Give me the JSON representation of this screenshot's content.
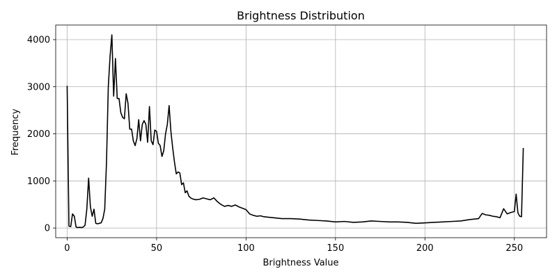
{
  "chart_data": {
    "type": "line",
    "title": "Brightness Distribution",
    "xlabel": "Brightness Value",
    "ylabel": "Frequency",
    "xlim": [
      -6.4,
      268
    ],
    "ylim": [
      -205,
      4310
    ],
    "xticks": [
      0,
      50,
      100,
      150,
      200,
      250
    ],
    "yticks": [
      0,
      1000,
      2000,
      3000,
      4000
    ],
    "grid": true,
    "series": [
      {
        "color": "#000000",
        "x": [
          0,
          1,
          2,
          3,
          4,
          5,
          6,
          7,
          8,
          9,
          10,
          11,
          12,
          13,
          14,
          15,
          16,
          17,
          18,
          19,
          20,
          21,
          22,
          23,
          24,
          25,
          26,
          27,
          28,
          29,
          30,
          31,
          32,
          33,
          34,
          35,
          36,
          37,
          38,
          39,
          40,
          41,
          42,
          43,
          44,
          45,
          46,
          47,
          48,
          49,
          50,
          51,
          52,
          53,
          54,
          55,
          56,
          57,
          58,
          59,
          60,
          61,
          62,
          63,
          64,
          65,
          66,
          67,
          68,
          69,
          70,
          72,
          74,
          76,
          78,
          80,
          82,
          84,
          86,
          88,
          90,
          92,
          94,
          96,
          98,
          100,
          102,
          104,
          106,
          108,
          110,
          115,
          120,
          125,
          130,
          135,
          140,
          145,
          150,
          155,
          160,
          165,
          170,
          175,
          180,
          185,
          190,
          195,
          200,
          205,
          210,
          215,
          220,
          225,
          230,
          232,
          234,
          236,
          238,
          240,
          242,
          244,
          246,
          248,
          250,
          251,
          252,
          253,
          254,
          255
        ],
        "y": [
          3020,
          40,
          30,
          300,
          250,
          20,
          10,
          15,
          10,
          20,
          60,
          400,
          1060,
          450,
          250,
          400,
          100,
          90,
          100,
          110,
          200,
          400,
          1400,
          3000,
          3650,
          4100,
          2800,
          3600,
          2750,
          2750,
          2450,
          2350,
          2320,
          2850,
          2650,
          2100,
          2100,
          1850,
          1750,
          1900,
          2300,
          1850,
          2200,
          2280,
          2200,
          1820,
          2580,
          1850,
          1770,
          2080,
          2050,
          1800,
          1750,
          1520,
          1640,
          2000,
          2200,
          2600,
          2050,
          1700,
          1400,
          1150,
          1190,
          1170,
          920,
          960,
          750,
          790,
          680,
          640,
          620,
          600,
          610,
          640,
          620,
          600,
          640,
          560,
          500,
          460,
          480,
          460,
          490,
          450,
          420,
          390,
          300,
          270,
          250,
          260,
          240,
          220,
          200,
          200,
          190,
          170,
          160,
          150,
          130,
          140,
          120,
          130,
          150,
          140,
          130,
          130,
          120,
          100,
          110,
          120,
          130,
          140,
          150,
          180,
          200,
          310,
          280,
          270,
          250,
          240,
          220,
          410,
          300,
          330,
          350,
          720,
          320,
          250,
          240,
          1700
        ]
      }
    ]
  }
}
